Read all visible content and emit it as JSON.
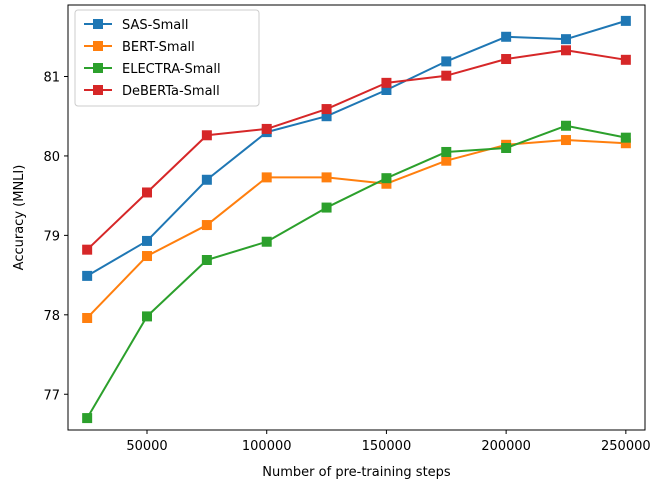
{
  "chart_data": {
    "type": "line",
    "xlabel": "Number of pre-training steps",
    "ylabel": "Accuracy (MNLI)",
    "xlim": [
      17000,
      258000
    ],
    "ylim": [
      76.55,
      81.9
    ],
    "xticks": [
      50000,
      100000,
      150000,
      200000,
      250000
    ],
    "yticks": [
      77,
      78,
      79,
      80,
      81
    ],
    "grid": false,
    "legend_position": "top-left",
    "marker": "square",
    "x": [
      25000,
      50000,
      75000,
      100000,
      125000,
      150000,
      175000,
      200000,
      225000,
      250000
    ],
    "series": [
      {
        "name": "SAS-Small",
        "color": "#1f77b4",
        "values": [
          78.49,
          78.93,
          79.7,
          80.3,
          80.5,
          80.83,
          81.19,
          81.5,
          81.47,
          81.7
        ]
      },
      {
        "name": "BERT-Small",
        "color": "#ff7f0e",
        "values": [
          77.96,
          78.74,
          79.13,
          79.73,
          79.73,
          79.65,
          79.94,
          80.14,
          80.2,
          80.16
        ]
      },
      {
        "name": "ELECTRA-Small",
        "color": "#2ca02c",
        "values": [
          76.7,
          77.98,
          78.69,
          78.92,
          79.35,
          79.72,
          80.05,
          80.1,
          80.38,
          80.23
        ]
      },
      {
        "name": "DeBERTa-Small",
        "color": "#d62728",
        "values": [
          78.82,
          79.54,
          80.26,
          80.34,
          80.59,
          80.92,
          81.01,
          81.22,
          81.33,
          81.21
        ]
      }
    ]
  }
}
